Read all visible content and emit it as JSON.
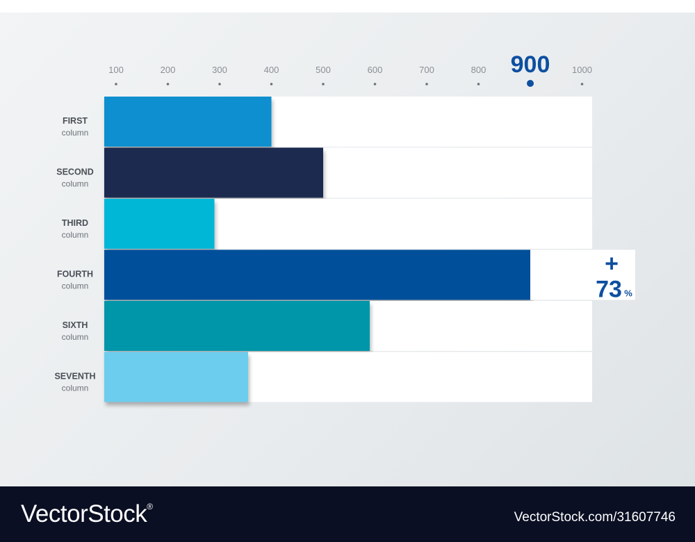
{
  "chart_data": {
    "type": "bar",
    "orientation": "horizontal",
    "categories": [
      {
        "name": "FIRST",
        "sub": "column"
      },
      {
        "name": "SECOND",
        "sub": "column"
      },
      {
        "name": "THIRD",
        "sub": "column"
      },
      {
        "name": "FOURTH",
        "sub": "column"
      },
      {
        "name": "SIXTH",
        "sub": "column"
      },
      {
        "name": "SEVENTH",
        "sub": "column"
      }
    ],
    "values": [
      400,
      500,
      290,
      900,
      590,
      355
    ],
    "colors": [
      "#0a8fd0",
      "#1a2a4f",
      "#00b7d6",
      "#004f9a",
      "#0096aa",
      "#6dcdee"
    ],
    "x_ticks": [
      "100",
      "200",
      "300",
      "400",
      "500",
      "600",
      "700",
      "800",
      "900",
      "1000"
    ],
    "xlim": [
      100,
      1000
    ],
    "highlight_tick": "900",
    "annotation": {
      "sign": "+",
      "value": "73",
      "unit": "%",
      "category": "FOURTH"
    },
    "grid": false
  },
  "footer": {
    "brand": "VectorStock",
    "registered": "®",
    "url": "VectorStock.com/31607746"
  }
}
